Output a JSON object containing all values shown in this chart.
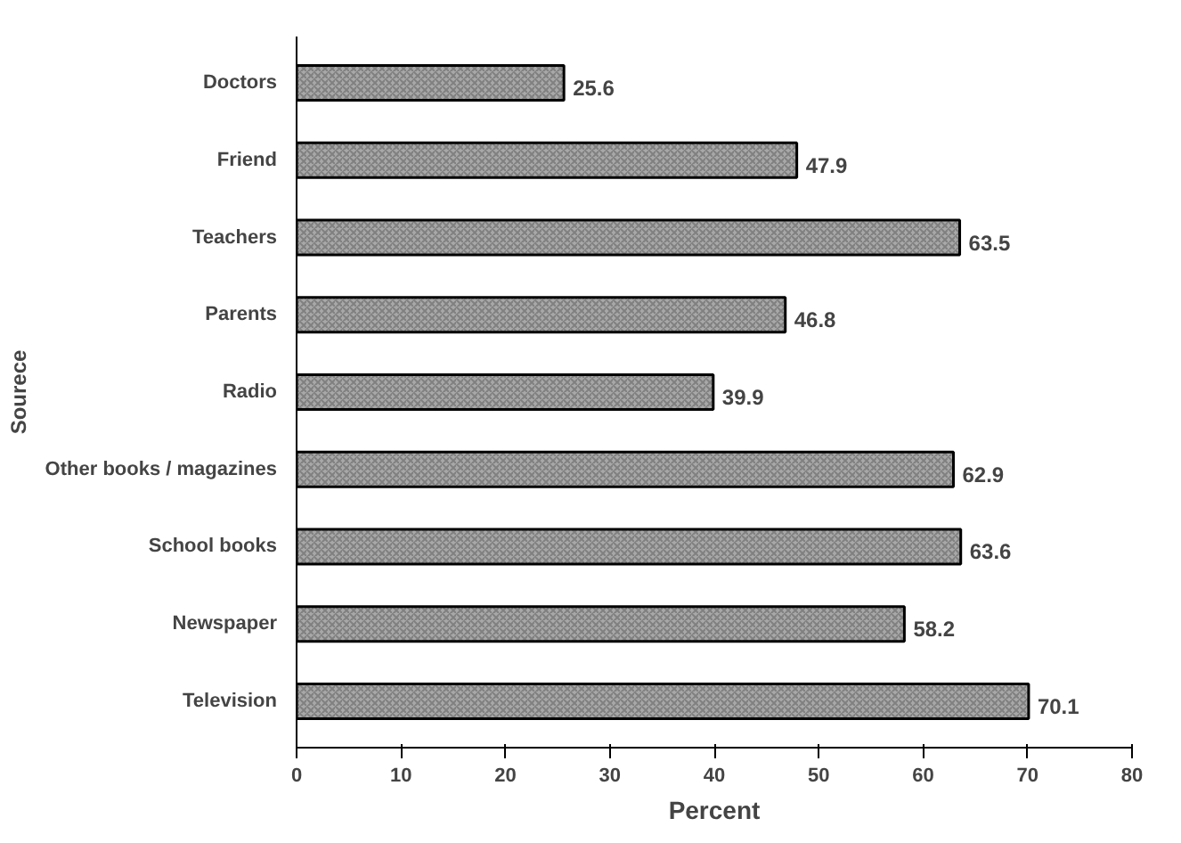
{
  "chart_data": {
    "type": "bar",
    "orientation": "horizontal",
    "xlabel": "Percent",
    "ylabel": "Sourece",
    "categories": [
      "Doctors",
      "Friend",
      "Teachers",
      "Parents",
      "Radio",
      "Other books / magazines",
      "School books",
      "Newspaper",
      "Television"
    ],
    "values": [
      25.6,
      47.9,
      63.5,
      46.8,
      39.9,
      62.9,
      63.6,
      58.2,
      70.1
    ],
    "color": "#a8a8a8",
    "xlim": [
      0,
      80
    ],
    "xticks": [
      0,
      10,
      20,
      30,
      40,
      50,
      60,
      70,
      80
    ],
    "grid": false,
    "data_labels": true
  }
}
